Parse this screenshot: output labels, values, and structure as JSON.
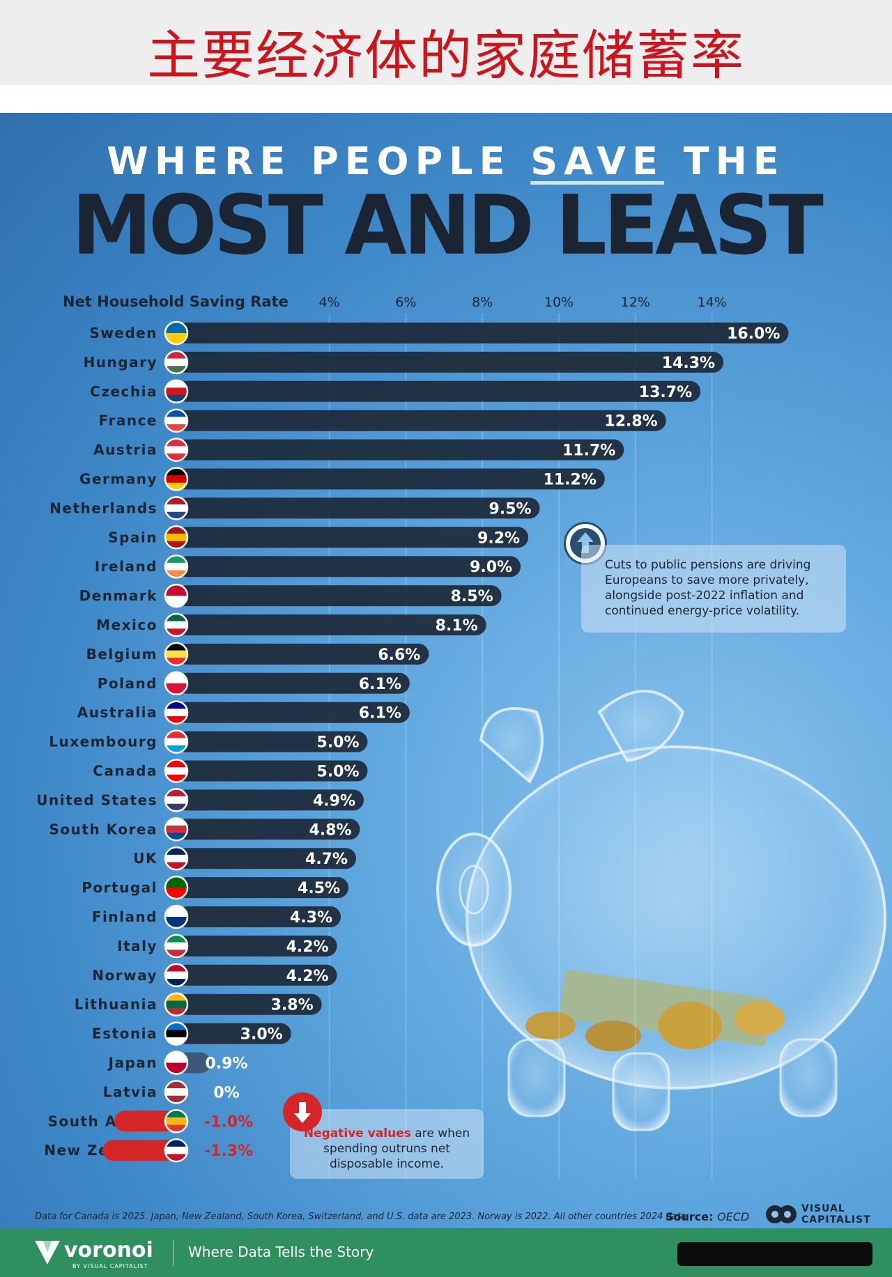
{
  "banner": {
    "title": "主要经济体的家庭储蓄率"
  },
  "header": {
    "line1_part1": "WHERE PEOPLE ",
    "line1_highlight": "SAVE",
    "line1_part2": " THE",
    "line2": "MOST AND LEAST"
  },
  "chart_data": {
    "type": "bar",
    "orientation": "horizontal",
    "title": "WHERE PEOPLE SAVE THE MOST AND LEAST",
    "xlabel": "Net Household Saving Rate",
    "xticks": [
      "4%",
      "6%",
      "8%",
      "10%",
      "12%",
      "14%"
    ],
    "tick_values": [
      4,
      6,
      8,
      10,
      12,
      14
    ],
    "xlim": [
      -1.3,
      16
    ],
    "categories": [
      "Sweden",
      "Hungary",
      "Czechia",
      "France",
      "Austria",
      "Germany",
      "Netherlands",
      "Spain",
      "Ireland",
      "Denmark",
      "Mexico",
      "Belgium",
      "Poland",
      "Australia",
      "Luxembourg",
      "Canada",
      "United States",
      "South Korea",
      "UK",
      "Portugal",
      "Finland",
      "Italy",
      "Norway",
      "Lithuania",
      "Estonia",
      "Japan",
      "Latvia",
      "South Africa",
      "New Zealand"
    ],
    "values": [
      16.0,
      14.3,
      13.7,
      12.8,
      11.7,
      11.2,
      9.5,
      9.2,
      9.0,
      8.5,
      8.1,
      6.6,
      6.1,
      6.1,
      5.0,
      5.0,
      4.9,
      4.8,
      4.7,
      4.5,
      4.3,
      4.2,
      4.2,
      3.8,
      3.0,
      0.9,
      0,
      -1.0,
      -1.3
    ],
    "labels": [
      "16.0%",
      "14.3%",
      "13.7%",
      "12.8%",
      "11.7%",
      "11.2%",
      "9.5%",
      "9.2%",
      "9.0%",
      "8.5%",
      "8.1%",
      "6.6%",
      "6.1%",
      "6.1%",
      "5.0%",
      "5.0%",
      "4.9%",
      "4.8%",
      "4.7%",
      "4.5%",
      "4.3%",
      "4.2%",
      "4.2%",
      "3.8%",
      "3.0%",
      "0.9%",
      "0%",
      "-1.0%",
      "-1.3%"
    ],
    "flag_colors": [
      [
        "#006aa7",
        "#fecc02"
      ],
      [
        "#ce2939",
        "#ffffff",
        "#477050"
      ],
      [
        "#ffffff",
        "#d7141a",
        "#11457e"
      ],
      [
        "#0055a4",
        "#ffffff",
        "#ef4135"
      ],
      [
        "#ed2939",
        "#ffffff",
        "#ed2939"
      ],
      [
        "#000000",
        "#dd0000",
        "#ffce00"
      ],
      [
        "#ae1c28",
        "#ffffff",
        "#21468b"
      ],
      [
        "#aa151b",
        "#f1bf00",
        "#aa151b"
      ],
      [
        "#169b62",
        "#ffffff",
        "#ff883e"
      ],
      [
        "#c60c30",
        "#ffffff"
      ],
      [
        "#006847",
        "#ffffff",
        "#ce1126"
      ],
      [
        "#000000",
        "#fae042",
        "#ed2939"
      ],
      [
        "#ffffff",
        "#dc143c"
      ],
      [
        "#00008b",
        "#ffffff",
        "#ff0000"
      ],
      [
        "#ed2939",
        "#ffffff",
        "#00a1de"
      ],
      [
        "#ff0000",
        "#ffffff",
        "#ff0000"
      ],
      [
        "#b22234",
        "#ffffff",
        "#3c3b6e"
      ],
      [
        "#ffffff",
        "#cd2e3a",
        "#0047a0"
      ],
      [
        "#012169",
        "#ffffff",
        "#c8102e"
      ],
      [
        "#006600",
        "#ff0000"
      ],
      [
        "#ffffff",
        "#003580"
      ],
      [
        "#009246",
        "#ffffff",
        "#ce2b37"
      ],
      [
        "#ba0c2f",
        "#ffffff",
        "#00205b"
      ],
      [
        "#fdb913",
        "#006a44",
        "#c1272d"
      ],
      [
        "#0072ce",
        "#000000",
        "#ffffff"
      ],
      [
        "#ffffff",
        "#bc002d"
      ],
      [
        "#9e3039",
        "#ffffff",
        "#9e3039"
      ],
      [
        "#007a4d",
        "#ffb612",
        "#de3831"
      ],
      [
        "#012169",
        "#ffffff",
        "#c8102e"
      ]
    ],
    "colors": {
      "positive_bar": "#1e2a3a",
      "negative_pill": "#d42626",
      "negative_label": "#d42626",
      "label_text": "#ffffff"
    }
  },
  "annotation_pensions": "Cuts to public pensions are driving Europeans to save more privately, alongside post-2022 inflation and continued energy-price volatility.",
  "annotation_negative": {
    "highlight": "Negative values",
    "rest": " are when spending outruns net disposable income."
  },
  "footnote": "Data for Canada is 2025. Japan, New Zealand, South Korea, Switzerland, and U.S. data are 2023. Norway is 2022. All other countries 2024 data.",
  "source": {
    "label": "Source:",
    "value": "OECD"
  },
  "logo": {
    "line1": "VISUAL",
    "line2": "CAPITALIST"
  },
  "footer": {
    "brand": "voronoi",
    "sub": "BY VISUAL CAPITALIST",
    "tagline": "Where Data Tells the Story"
  }
}
